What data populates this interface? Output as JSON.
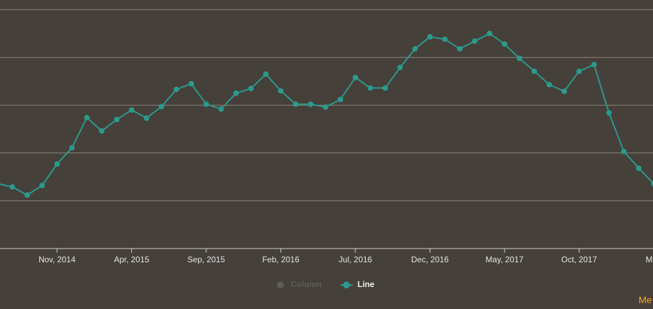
{
  "chart_data": {
    "type": "line",
    "categories": [
      null,
      null,
      null,
      null,
      "Nov, 2014",
      null,
      null,
      null,
      null,
      "Apr, 2015",
      null,
      null,
      null,
      null,
      "Sep, 2015",
      null,
      null,
      null,
      null,
      "Feb, 2016",
      null,
      null,
      null,
      null,
      "Jul, 2016",
      null,
      null,
      null,
      null,
      "Dec, 2016",
      null,
      null,
      null,
      null,
      "May, 2017",
      null,
      null,
      null,
      null,
      "Oct, 2017",
      null,
      null,
      null,
      null,
      "Mar,"
    ],
    "series": [
      {
        "name": "Column",
        "color": "#5c5c5c",
        "visible": false
      },
      {
        "name": "Line",
        "color": "#2b9a8c",
        "visible": true,
        "values": [
          1.36,
          1.29,
          1.12,
          1.32,
          1.77,
          2.11,
          2.74,
          2.46,
          2.7,
          2.9,
          2.73,
          2.97,
          3.33,
          3.45,
          3.02,
          2.92,
          3.25,
          3.35,
          3.65,
          3.3,
          3.02,
          3.02,
          2.96,
          3.12,
          3.58,
          3.36,
          3.36,
          3.79,
          4.18,
          4.43,
          4.38,
          4.18,
          4.34,
          4.5,
          4.28,
          3.98,
          3.71,
          3.43,
          3.29,
          3.71,
          3.85,
          2.84,
          2.03,
          1.68,
          1.36
        ]
      }
    ],
    "ylim": [
      0,
      5
    ],
    "yticks": [
      0,
      1,
      2,
      3,
      4,
      5
    ],
    "ytick_labels": false,
    "grid": true,
    "corner_link": "Me"
  }
}
